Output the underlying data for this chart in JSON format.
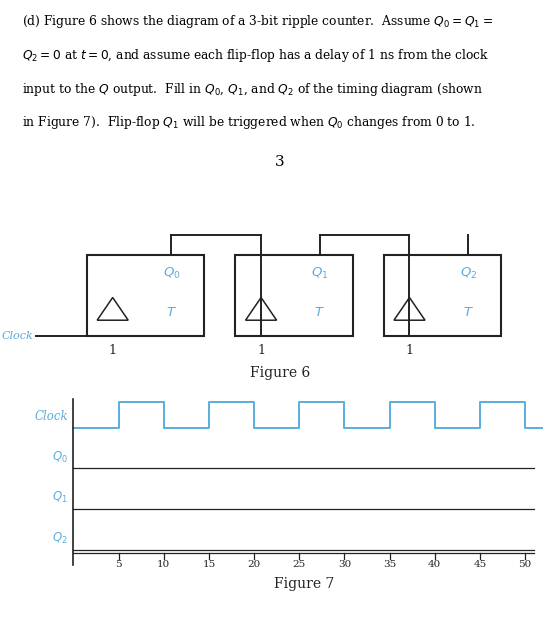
{
  "text_color": "#000000",
  "blue_color": "#5aacde",
  "dark_color": "#222222",
  "background": "#ffffff",
  "page_number": "3",
  "fig6_caption": "Figure 6",
  "fig7_caption": "Figure 7",
  "clock_label": "Clock",
  "ff_labels": [
    "$Q_0$",
    "$Q_1$",
    "$Q_2$"
  ],
  "timing_labels": [
    "Clock",
    "$Q_0$",
    "$Q_1$",
    "$Q_2$"
  ],
  "x_ticks": [
    5,
    10,
    15,
    20,
    25,
    30,
    35,
    40,
    45,
    50
  ],
  "header_lines": [
    "(d) Figure 6 shows the diagram of a 3-bit ripple counter.  Assume $Q_0 = Q_1 =$",
    "$Q_2 = 0$ at $t = 0$, and assume each flip-flop has a delay of 1 ns from the clock",
    "input to the $Q$ output.  Fill in $Q_0$, $Q_1$, and $Q_2$ of the timing diagram (shown",
    "in Figure 7).  Flip-flop $Q_1$ will be triggered when $Q_0$ changes from 0 to 1."
  ],
  "clock_steps_t": [
    0,
    5,
    5,
    10,
    10,
    15,
    15,
    20,
    20,
    25,
    25,
    30,
    30,
    35,
    35,
    40,
    40,
    45,
    45,
    50,
    50,
    52
  ],
  "clock_steps_v": [
    0,
    0,
    1,
    1,
    0,
    0,
    1,
    1,
    0,
    0,
    1,
    1,
    0,
    0,
    1,
    1,
    0,
    0,
    1,
    1,
    0,
    0
  ],
  "divider_color": "#555555",
  "fig_width": 5.6,
  "fig_height": 6.25,
  "dpi": 100
}
